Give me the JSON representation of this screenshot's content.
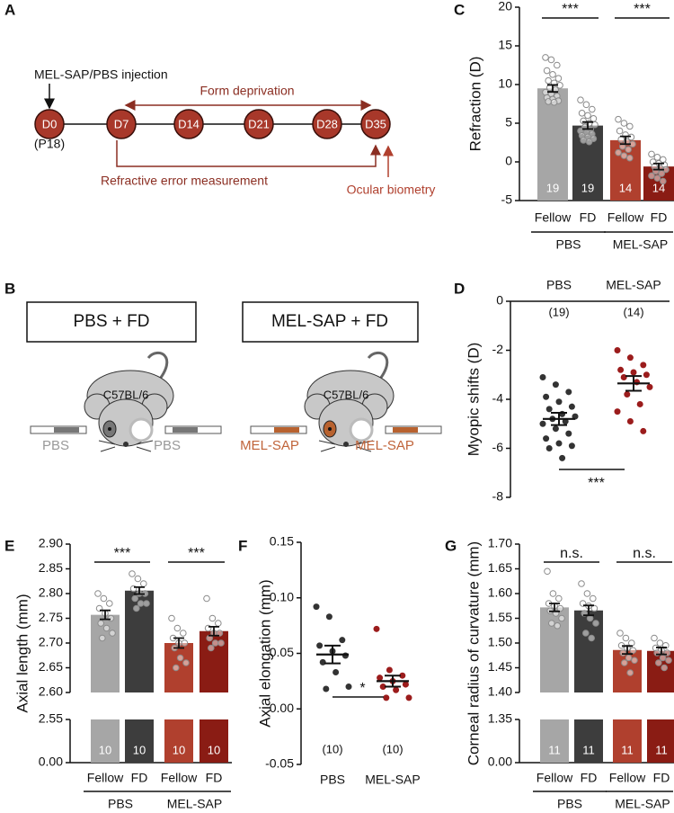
{
  "timeline": {
    "panel_label": "A",
    "injection": "MEL-SAP/PBS injection",
    "form_deprivation": "Form deprivation",
    "days": [
      "D0",
      "D7",
      "D14",
      "D21",
      "D28",
      "D35"
    ],
    "start_age": "(P18)",
    "refraction": "Refractive error measurement",
    "biometry": "Ocular biometry"
  },
  "schematic": {
    "panel_label": "B",
    "groups": [
      {
        "title": "PBS + FD",
        "strain": "C57BL/6",
        "injection": "PBS"
      },
      {
        "title": "MEL-SAP + FD",
        "strain": "C57BL/6",
        "injection": "MEL-SAP"
      }
    ]
  },
  "chart_data": [
    {
      "type": "bar",
      "panel_label": "C",
      "ylabel": "Refraction (D)",
      "categories": [
        "Fellow",
        "FD",
        "Fellow",
        "FD"
      ],
      "groups": [
        "PBS",
        "MEL-SAP"
      ],
      "values": [
        9.5,
        4.7,
        2.8,
        -0.6
      ],
      "errors": [
        0.45,
        0.45,
        0.5,
        0.4
      ],
      "n": [
        19,
        19,
        14,
        14
      ],
      "colors": [
        "#a6a6a6",
        "#3d3d3d",
        "#b0402e",
        "#8a1c14"
      ],
      "points": [
        [
          13.5,
          13.2,
          12.5,
          11.8,
          11.3,
          10.8,
          10.5,
          10.2,
          9.9,
          9.6,
          9.3,
          9.0,
          8.8,
          8.5,
          8.3,
          8.1,
          7.9,
          7.8,
          7.7
        ],
        [
          8.0,
          7.4,
          6.8,
          6.3,
          6.0,
          5.6,
          5.3,
          5.0,
          4.8,
          4.5,
          4.2,
          4.0,
          3.8,
          3.6,
          3.4,
          3.2,
          3.0,
          2.8,
          2.6
        ],
        [
          5.5,
          5.0,
          4.6,
          4.0,
          3.5,
          3.2,
          2.9,
          2.6,
          2.3,
          2.0,
          1.6,
          1.2,
          0.8,
          0.5
        ],
        [
          1.0,
          0.6,
          0.3,
          0.0,
          -0.2,
          -0.4,
          -0.6,
          -0.8,
          -1.0,
          -1.2,
          -1.5,
          -1.8,
          -2.1,
          -2.5
        ]
      ],
      "significance": [
        "***",
        "***"
      ],
      "ylim": [
        -5,
        20
      ],
      "yticks": [
        -5,
        0,
        5,
        10,
        15,
        20
      ]
    },
    {
      "type": "strip",
      "panel_label": "D",
      "ylabel": "Myopic shifts (D)",
      "categories": [
        "PBS",
        "MEL-SAP"
      ],
      "values": [
        -4.8,
        -3.35
      ],
      "errors": [
        0.25,
        0.3
      ],
      "n": [
        "(19)",
        "(14)"
      ],
      "colors": [
        "#333333",
        "#9b1c1c"
      ],
      "points": [
        [
          -3.1,
          -3.4,
          -3.7,
          -3.9,
          -4.1,
          -4.3,
          -4.4,
          -4.6,
          -4.7,
          -4.8,
          -4.9,
          -5.0,
          -5.2,
          -5.4,
          -5.6,
          -5.8,
          -5.9,
          -6.0,
          -6.4
        ],
        [
          -2.0,
          -2.3,
          -2.6,
          -2.8,
          -2.9,
          -3.0,
          -3.1,
          -3.3,
          -3.5,
          -3.8,
          -4.2,
          -4.5,
          -4.9,
          -5.3
        ]
      ],
      "significance": [
        "***"
      ],
      "ylim": [
        -8,
        0
      ],
      "yticks": [
        -8,
        -6,
        -4,
        -2,
        0
      ]
    },
    {
      "type": "bar",
      "panel_label": "E",
      "ylabel": "Axial length (mm)",
      "categories": [
        "Fellow",
        "FD",
        "Fellow",
        "FD"
      ],
      "groups": [
        "PBS",
        "MEL-SAP"
      ],
      "values": [
        2.757,
        2.806,
        2.7,
        2.724
      ],
      "errors": [
        0.009,
        0.007,
        0.01,
        0.009
      ],
      "n": [
        10,
        10,
        10,
        10
      ],
      "colors": [
        "#a6a6a6",
        "#3d3d3d",
        "#b0402e",
        "#8a1c14"
      ],
      "points": [
        [
          2.8,
          2.79,
          2.78,
          2.77,
          2.76,
          2.75,
          2.74,
          2.73,
          2.72,
          2.71
        ],
        [
          2.84,
          2.83,
          2.82,
          2.81,
          2.8,
          2.8,
          2.79,
          2.78,
          2.78,
          2.77
        ],
        [
          2.75,
          2.73,
          2.72,
          2.71,
          2.7,
          2.7,
          2.69,
          2.67,
          2.66,
          2.65
        ],
        [
          2.79,
          2.75,
          2.74,
          2.73,
          2.72,
          2.72,
          2.71,
          2.7,
          2.7,
          2.69
        ]
      ],
      "significance": [
        "***",
        "***"
      ],
      "ylim": [
        0,
        2.9
      ],
      "ybreak": [
        2.55,
        2.6
      ],
      "yticks": [
        {
          "value": 0,
          "label": "0.00"
        },
        2.55,
        {
          "value": 2.6,
          "label": "2.60"
        },
        2.65,
        {
          "value": 2.7,
          "label": "2.70"
        },
        2.75,
        {
          "value": 2.8,
          "label": "2.80"
        },
        2.85,
        {
          "value": 2.9,
          "label": "2.90"
        }
      ]
    },
    {
      "type": "strip",
      "panel_label": "F",
      "ylabel": "Axial elongation (mm)",
      "categories": [
        "PBS",
        "MEL-SAP"
      ],
      "values": [
        0.049,
        0.025
      ],
      "errors": [
        0.008,
        0.005
      ],
      "n": [
        "(10)",
        "(10)"
      ],
      "colors": [
        "#333333",
        "#9b1c1c"
      ],
      "points": [
        [
          0.092,
          0.083,
          0.062,
          0.057,
          0.052,
          0.048,
          0.042,
          0.033,
          0.02,
          0.018
        ],
        [
          0.072,
          0.035,
          0.03,
          0.028,
          0.025,
          0.022,
          0.02,
          0.017,
          0.01,
          0.01
        ]
      ],
      "significance": [
        "*"
      ],
      "ylim": [
        -0.05,
        0.15
      ],
      "yticks": [
        -0.05,
        {
          "value": 0,
          "label": "0.00"
        },
        0.05,
        {
          "value": 0.1,
          "label": "0.10"
        },
        0.15
      ]
    },
    {
      "type": "bar",
      "panel_label": "G",
      "ylabel": "Corneal radius of curvature (mm)",
      "categories": [
        "Fellow",
        "FD",
        "Fellow",
        "FD"
      ],
      "groups": [
        "PBS",
        "MEL-SAP"
      ],
      "values": [
        1.572,
        1.566,
        1.486,
        1.484
      ],
      "errors": [
        0.008,
        0.01,
        0.008,
        0.007
      ],
      "n": [
        11,
        11,
        11,
        11
      ],
      "colors": [
        "#a6a6a6",
        "#3d3d3d",
        "#b0402e",
        "#8a1c14"
      ],
      "points": [
        [
          1.645,
          1.6,
          1.59,
          1.58,
          1.575,
          1.57,
          1.565,
          1.56,
          1.55,
          1.54,
          1.535
        ],
        [
          1.62,
          1.6,
          1.59,
          1.58,
          1.575,
          1.57,
          1.56,
          1.55,
          1.54,
          1.52,
          1.51
        ],
        [
          1.52,
          1.51,
          1.5,
          1.495,
          1.49,
          1.485,
          1.48,
          1.47,
          1.465,
          1.46,
          1.44
        ],
        [
          1.51,
          1.5,
          1.495,
          1.49,
          1.485,
          1.48,
          1.48,
          1.47,
          1.465,
          1.46,
          1.45
        ]
      ],
      "significance": [
        "n.s.",
        "n.s."
      ],
      "ylim": [
        0,
        1.7
      ],
      "ybreak": [
        1.35,
        1.4
      ],
      "yticks": [
        {
          "value": 0,
          "label": "0.00"
        },
        1.35,
        {
          "value": 1.4,
          "label": "1.40"
        },
        1.45,
        {
          "value": 1.5,
          "label": "1.50"
        },
        1.55,
        {
          "value": 1.6,
          "label": "1.60"
        },
        1.65,
        {
          "value": 1.7,
          "label": "1.70"
        }
      ]
    }
  ]
}
